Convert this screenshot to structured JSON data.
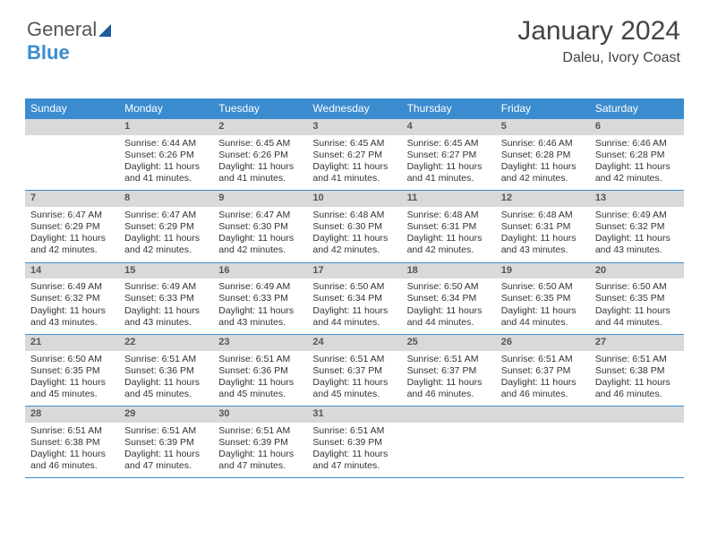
{
  "logo": {
    "word1": "General",
    "word2": "Blue"
  },
  "title": {
    "month": "January 2024",
    "location": "Daleu, Ivory Coast"
  },
  "colors": {
    "header_bg": "#3b8ccf",
    "daynum_bg": "#d9d9d9",
    "text": "#333333",
    "sep": "#3b8ccf"
  },
  "weekdays": [
    "Sunday",
    "Monday",
    "Tuesday",
    "Wednesday",
    "Thursday",
    "Friday",
    "Saturday"
  ],
  "weeks": [
    {
      "nums": [
        "",
        "1",
        "2",
        "3",
        "4",
        "5",
        "6"
      ],
      "cells": [
        {},
        {
          "sr": "Sunrise: 6:44 AM",
          "ss": "Sunset: 6:26 PM",
          "d1": "Daylight: 11 hours",
          "d2": "and 41 minutes."
        },
        {
          "sr": "Sunrise: 6:45 AM",
          "ss": "Sunset: 6:26 PM",
          "d1": "Daylight: 11 hours",
          "d2": "and 41 minutes."
        },
        {
          "sr": "Sunrise: 6:45 AM",
          "ss": "Sunset: 6:27 PM",
          "d1": "Daylight: 11 hours",
          "d2": "and 41 minutes."
        },
        {
          "sr": "Sunrise: 6:45 AM",
          "ss": "Sunset: 6:27 PM",
          "d1": "Daylight: 11 hours",
          "d2": "and 41 minutes."
        },
        {
          "sr": "Sunrise: 6:46 AM",
          "ss": "Sunset: 6:28 PM",
          "d1": "Daylight: 11 hours",
          "d2": "and 42 minutes."
        },
        {
          "sr": "Sunrise: 6:46 AM",
          "ss": "Sunset: 6:28 PM",
          "d1": "Daylight: 11 hours",
          "d2": "and 42 minutes."
        }
      ]
    },
    {
      "nums": [
        "7",
        "8",
        "9",
        "10",
        "11",
        "12",
        "13"
      ],
      "cells": [
        {
          "sr": "Sunrise: 6:47 AM",
          "ss": "Sunset: 6:29 PM",
          "d1": "Daylight: 11 hours",
          "d2": "and 42 minutes."
        },
        {
          "sr": "Sunrise: 6:47 AM",
          "ss": "Sunset: 6:29 PM",
          "d1": "Daylight: 11 hours",
          "d2": "and 42 minutes."
        },
        {
          "sr": "Sunrise: 6:47 AM",
          "ss": "Sunset: 6:30 PM",
          "d1": "Daylight: 11 hours",
          "d2": "and 42 minutes."
        },
        {
          "sr": "Sunrise: 6:48 AM",
          "ss": "Sunset: 6:30 PM",
          "d1": "Daylight: 11 hours",
          "d2": "and 42 minutes."
        },
        {
          "sr": "Sunrise: 6:48 AM",
          "ss": "Sunset: 6:31 PM",
          "d1": "Daylight: 11 hours",
          "d2": "and 42 minutes."
        },
        {
          "sr": "Sunrise: 6:48 AM",
          "ss": "Sunset: 6:31 PM",
          "d1": "Daylight: 11 hours",
          "d2": "and 43 minutes."
        },
        {
          "sr": "Sunrise: 6:49 AM",
          "ss": "Sunset: 6:32 PM",
          "d1": "Daylight: 11 hours",
          "d2": "and 43 minutes."
        }
      ]
    },
    {
      "nums": [
        "14",
        "15",
        "16",
        "17",
        "18",
        "19",
        "20"
      ],
      "cells": [
        {
          "sr": "Sunrise: 6:49 AM",
          "ss": "Sunset: 6:32 PM",
          "d1": "Daylight: 11 hours",
          "d2": "and 43 minutes."
        },
        {
          "sr": "Sunrise: 6:49 AM",
          "ss": "Sunset: 6:33 PM",
          "d1": "Daylight: 11 hours",
          "d2": "and 43 minutes."
        },
        {
          "sr": "Sunrise: 6:49 AM",
          "ss": "Sunset: 6:33 PM",
          "d1": "Daylight: 11 hours",
          "d2": "and 43 minutes."
        },
        {
          "sr": "Sunrise: 6:50 AM",
          "ss": "Sunset: 6:34 PM",
          "d1": "Daylight: 11 hours",
          "d2": "and 44 minutes."
        },
        {
          "sr": "Sunrise: 6:50 AM",
          "ss": "Sunset: 6:34 PM",
          "d1": "Daylight: 11 hours",
          "d2": "and 44 minutes."
        },
        {
          "sr": "Sunrise: 6:50 AM",
          "ss": "Sunset: 6:35 PM",
          "d1": "Daylight: 11 hours",
          "d2": "and 44 minutes."
        },
        {
          "sr": "Sunrise: 6:50 AM",
          "ss": "Sunset: 6:35 PM",
          "d1": "Daylight: 11 hours",
          "d2": "and 44 minutes."
        }
      ]
    },
    {
      "nums": [
        "21",
        "22",
        "23",
        "24",
        "25",
        "26",
        "27"
      ],
      "cells": [
        {
          "sr": "Sunrise: 6:50 AM",
          "ss": "Sunset: 6:35 PM",
          "d1": "Daylight: 11 hours",
          "d2": "and 45 minutes."
        },
        {
          "sr": "Sunrise: 6:51 AM",
          "ss": "Sunset: 6:36 PM",
          "d1": "Daylight: 11 hours",
          "d2": "and 45 minutes."
        },
        {
          "sr": "Sunrise: 6:51 AM",
          "ss": "Sunset: 6:36 PM",
          "d1": "Daylight: 11 hours",
          "d2": "and 45 minutes."
        },
        {
          "sr": "Sunrise: 6:51 AM",
          "ss": "Sunset: 6:37 PM",
          "d1": "Daylight: 11 hours",
          "d2": "and 45 minutes."
        },
        {
          "sr": "Sunrise: 6:51 AM",
          "ss": "Sunset: 6:37 PM",
          "d1": "Daylight: 11 hours",
          "d2": "and 46 minutes."
        },
        {
          "sr": "Sunrise: 6:51 AM",
          "ss": "Sunset: 6:37 PM",
          "d1": "Daylight: 11 hours",
          "d2": "and 46 minutes."
        },
        {
          "sr": "Sunrise: 6:51 AM",
          "ss": "Sunset: 6:38 PM",
          "d1": "Daylight: 11 hours",
          "d2": "and 46 minutes."
        }
      ]
    },
    {
      "nums": [
        "28",
        "29",
        "30",
        "31",
        "",
        "",
        ""
      ],
      "cells": [
        {
          "sr": "Sunrise: 6:51 AM",
          "ss": "Sunset: 6:38 PM",
          "d1": "Daylight: 11 hours",
          "d2": "and 46 minutes."
        },
        {
          "sr": "Sunrise: 6:51 AM",
          "ss": "Sunset: 6:39 PM",
          "d1": "Daylight: 11 hours",
          "d2": "and 47 minutes."
        },
        {
          "sr": "Sunrise: 6:51 AM",
          "ss": "Sunset: 6:39 PM",
          "d1": "Daylight: 11 hours",
          "d2": "and 47 minutes."
        },
        {
          "sr": "Sunrise: 6:51 AM",
          "ss": "Sunset: 6:39 PM",
          "d1": "Daylight: 11 hours",
          "d2": "and 47 minutes."
        },
        {},
        {},
        {}
      ]
    }
  ]
}
